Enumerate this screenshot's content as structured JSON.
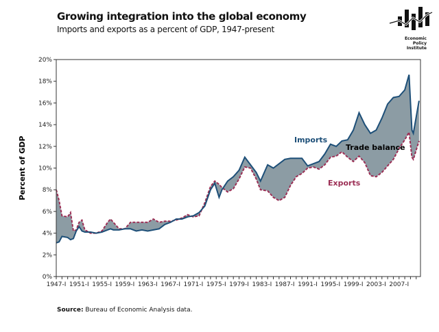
{
  "header": {
    "title": "Growing integration into the global economy",
    "subtitle": "Imports and exports as a percent of GDP, 1947-present"
  },
  "logo": {
    "text_lines": [
      "Economic",
      "Policy",
      "Institute"
    ]
  },
  "source": {
    "label": "Source:",
    "text": " Bureau of Economic Analysis data."
  },
  "chart_data": {
    "type": "area",
    "title": "Growing integration into the global economy",
    "ylabel": "Percent of GDP",
    "xlabel": "",
    "ylim": [
      0,
      20
    ],
    "yticks": [
      "0%",
      "2%",
      "4%",
      "6%",
      "8%",
      "10%",
      "12%",
      "14%",
      "16%",
      "18%",
      "20%"
    ],
    "xticks": [
      "1947-I",
      "1951-I",
      "1955-I",
      "1959-I",
      "1963-I",
      "1967-I",
      "1971-I",
      "1975-I",
      "1979-I",
      "1983-I",
      "1987-I",
      "1991-I",
      "1995-I",
      "1999-I",
      "2003-I",
      "2007-I"
    ],
    "grid": false,
    "colors": {
      "imports": "#1d4f78",
      "exports": "#9c2f55",
      "balance_fill": "#8c9ca4"
    },
    "annotations": [
      "Imports",
      "Exports",
      "Trade balance"
    ],
    "x": [
      "1947-I",
      "1947-III",
      "1948-I",
      "1949-I",
      "1949-III",
      "1950-I",
      "1950-III",
      "1951-I",
      "1951-III",
      "1952-I",
      "1953-I",
      "1954-I",
      "1955-I",
      "1956-I",
      "1956-III",
      "1957-I",
      "1958-I",
      "1959-I",
      "1960-I",
      "1961-I",
      "1962-I",
      "1963-I",
      "1964-I",
      "1965-I",
      "1966-I",
      "1967-I",
      "1968-I",
      "1969-I",
      "1970-I",
      "1971-I",
      "1972-I",
      "1973-I",
      "1974-I",
      "1974-IV",
      "1975-III",
      "1976-I",
      "1977-I",
      "1978-I",
      "1979-I",
      "1980-I",
      "1981-I",
      "1982-I",
      "1982-IV",
      "1984-I",
      "1985-I",
      "1986-I",
      "1987-I",
      "1988-I",
      "1989-I",
      "1990-I",
      "1991-I",
      "1992-I",
      "1993-I",
      "1994-I",
      "1995-I",
      "1996-I",
      "1997-I",
      "1998-I",
      "1999-I",
      "2000-I",
      "2001-I",
      "2002-I",
      "2003-I",
      "2004-I",
      "2005-I",
      "2006-I",
      "2007-I",
      "2008-I",
      "2008-IV",
      "2009-II",
      "2009-III",
      "2010-III"
    ],
    "series": [
      {
        "name": "Imports",
        "values": [
          3.1,
          3.2,
          3.7,
          3.6,
          3.4,
          3.5,
          4.2,
          4.6,
          4.2,
          4.1,
          4.1,
          4.0,
          4.1,
          4.3,
          4.4,
          4.3,
          4.3,
          4.4,
          4.4,
          4.2,
          4.3,
          4.2,
          4.3,
          4.4,
          4.8,
          5.0,
          5.3,
          5.3,
          5.5,
          5.6,
          5.9,
          6.5,
          8.0,
          8.6,
          7.3,
          8.0,
          8.8,
          9.2,
          9.8,
          11.0,
          10.3,
          9.6,
          8.8,
          10.3,
          10.0,
          10.4,
          10.8,
          10.9,
          10.9,
          10.9,
          10.2,
          10.4,
          10.6,
          11.3,
          12.2,
          12.0,
          12.5,
          12.6,
          13.5,
          15.1,
          14.0,
          13.2,
          13.5,
          14.6,
          15.9,
          16.5,
          16.6,
          17.2,
          18.6,
          13.5,
          13.2,
          16.2
        ]
      },
      {
        "name": "Exports",
        "values": [
          8.0,
          7.0,
          5.6,
          5.5,
          5.9,
          4.2,
          4.3,
          5.0,
          5.2,
          4.3,
          4.0,
          4.0,
          4.2,
          5.0,
          5.3,
          5.0,
          4.4,
          4.4,
          5.0,
          5.0,
          5.0,
          5.0,
          5.3,
          5.0,
          5.1,
          5.1,
          5.2,
          5.4,
          5.7,
          5.5,
          5.6,
          6.8,
          8.3,
          8.8,
          8.5,
          8.2,
          7.8,
          8.1,
          9.0,
          10.1,
          10.0,
          9.0,
          8.0,
          7.9,
          7.3,
          7.0,
          7.3,
          8.4,
          9.2,
          9.5,
          10.0,
          10.1,
          9.9,
          10.3,
          11.0,
          11.1,
          11.5,
          11.0,
          10.6,
          11.1,
          10.5,
          9.3,
          9.2,
          9.6,
          10.2,
          10.8,
          11.8,
          12.6,
          13.3,
          11.0,
          10.8,
          12.5
        ]
      }
    ]
  }
}
